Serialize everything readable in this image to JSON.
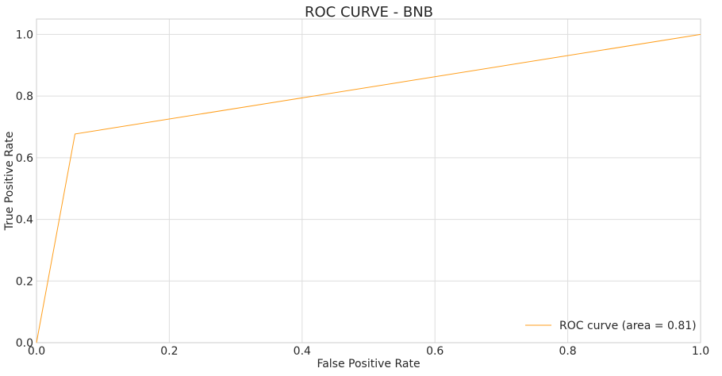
{
  "chart_data": {
    "type": "line",
    "title": "ROC CURVE - BNB",
    "xlabel": "False Positive Rate",
    "ylabel": "True Positive Rate",
    "xlim": [
      0.0,
      1.0
    ],
    "ylim": [
      0.0,
      1.05
    ],
    "xticks": [
      0.0,
      0.2,
      0.4,
      0.6,
      0.8,
      1.0
    ],
    "yticks": [
      0.0,
      0.2,
      0.4,
      0.6,
      0.8,
      1.0
    ],
    "xtick_labels": [
      "0.0",
      "0.2",
      "0.4",
      "0.6",
      "0.8",
      "1.0"
    ],
    "ytick_labels": [
      "0.0",
      "0.2",
      "0.4",
      "0.6",
      "0.8",
      "1.0"
    ],
    "grid": true,
    "legend_position": "lower-right",
    "series": [
      {
        "name": "ROC curve (area = 0.81)",
        "color": "#ff9e1b",
        "x": [
          0.0,
          0.058,
          1.0
        ],
        "y": [
          0.0,
          0.677,
          1.0
        ]
      }
    ]
  }
}
